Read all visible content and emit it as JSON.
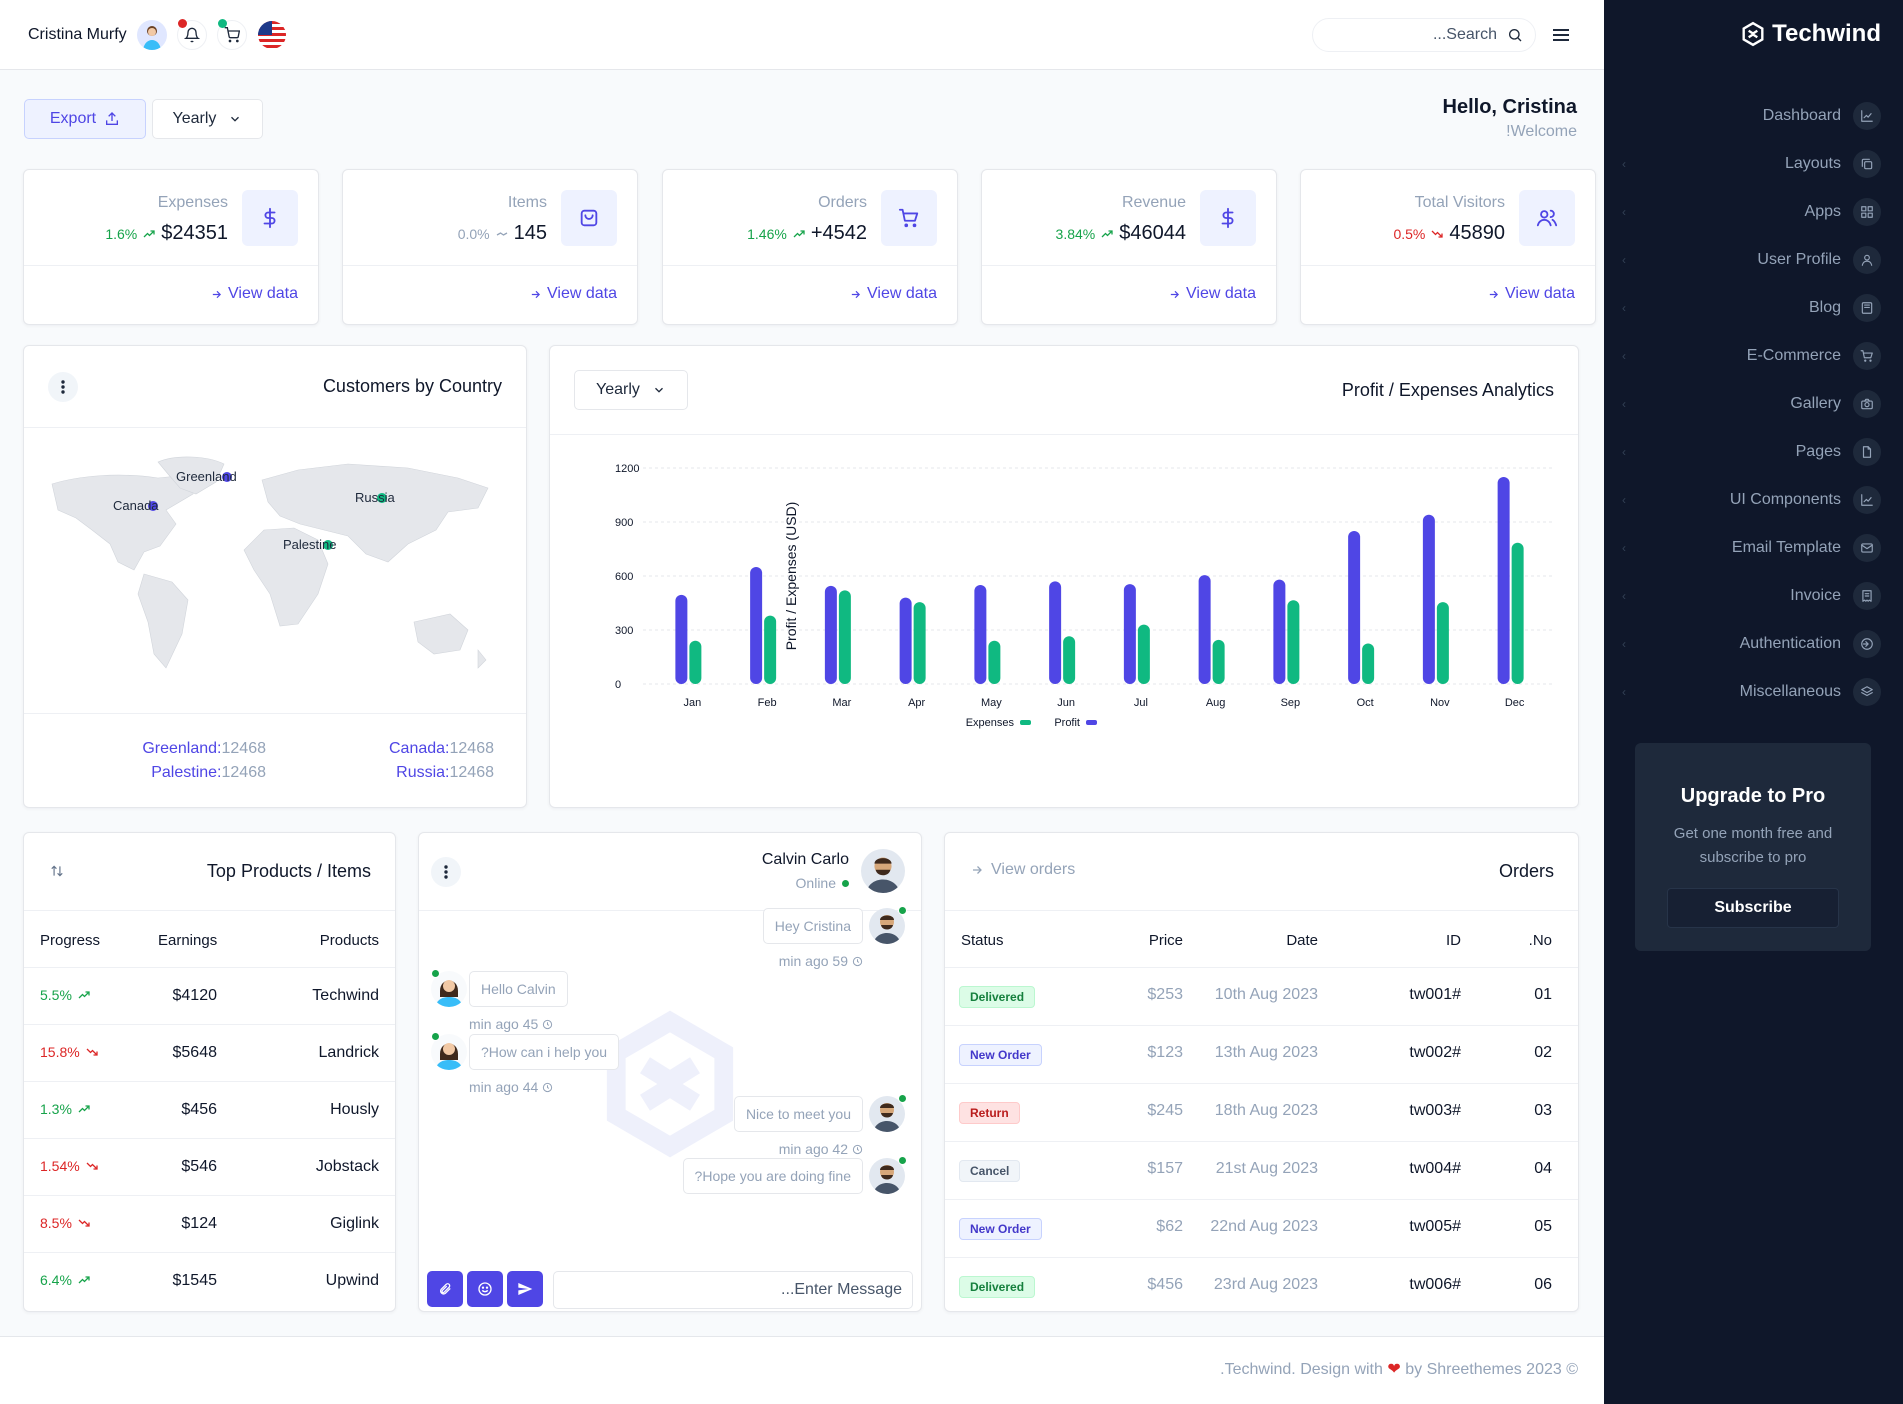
{
  "brand": {
    "name": "Techwind"
  },
  "topbar": {
    "user_name": "Cristina Murfy",
    "search_placeholder": "...Search"
  },
  "greeting": {
    "title": "Hello, Cristina",
    "subtitle": "!Welcome"
  },
  "controls": {
    "export_label": "Export",
    "period_label": "Yearly"
  },
  "stats": [
    {
      "label": "Expenses",
      "pct": "1.6%",
      "value": "$24351",
      "trend": "up",
      "link": "View data"
    },
    {
      "label": "Items",
      "pct": "0.0%",
      "value": "145",
      "trend": "flat",
      "link": "View data"
    },
    {
      "label": "Orders",
      "pct": "1.46%",
      "value": "+4542",
      "trend": "up",
      "link": "View data"
    },
    {
      "label": "Revenue",
      "pct": "3.84%",
      "value": "$46044",
      "trend": "up",
      "link": "View data"
    },
    {
      "label": "Total Visitors",
      "pct": "0.5%",
      "value": "45890",
      "trend": "down",
      "link": "View data"
    }
  ],
  "map_card": {
    "title": "Customers by Country",
    "markers": [
      "Greenland",
      "Canada",
      "Russia",
      "Palestine"
    ],
    "stats": [
      {
        "country": "Greenland:",
        "value": "12468"
      },
      {
        "country": "Canada:",
        "value": "12468"
      },
      {
        "country": "Palestine:",
        "value": "12468"
      },
      {
        "country": "Russia:",
        "value": "12468"
      }
    ]
  },
  "analytics": {
    "title": "Profit / Expenses Analytics",
    "period_label": "Yearly"
  },
  "chart_data": {
    "type": "bar",
    "title": "",
    "ylabel": "Profit / Expenses (USD)",
    "xlabel": "",
    "categories": [
      "Jan",
      "Feb",
      "Mar",
      "Apr",
      "May",
      "Jun",
      "Jul",
      "Aug",
      "Sep",
      "Oct",
      "Nov",
      "Dec"
    ],
    "series": [
      {
        "name": "Profit",
        "color": "#4f46e5",
        "values": [
          495,
          650,
          545,
          480,
          550,
          570,
          555,
          605,
          580,
          850,
          940,
          1150
        ]
      },
      {
        "name": "Expenses",
        "color": "#10b981",
        "values": [
          240,
          380,
          520,
          455,
          240,
          265,
          330,
          245,
          465,
          225,
          455,
          785
        ]
      }
    ],
    "yticks": [
      0,
      300,
      600,
      900,
      1200
    ],
    "ylim": [
      0,
      1200
    ],
    "legend": [
      "Expenses",
      "Profit"
    ],
    "legend_position": "bottom",
    "grid": true
  },
  "products": {
    "title": "Top Products / Items",
    "headers": {
      "progress": "Progress",
      "earnings": "Earnings",
      "products": "Products"
    },
    "rows": [
      {
        "progress": "5.5%",
        "trend": "up",
        "earnings": "$4120",
        "product": "Techwind"
      },
      {
        "progress": "15.8%",
        "trend": "down",
        "earnings": "$5648",
        "product": "Landrick"
      },
      {
        "progress": "1.3%",
        "trend": "up",
        "earnings": "$456",
        "product": "Hously"
      },
      {
        "progress": "1.54%",
        "trend": "down",
        "earnings": "$546",
        "product": "Jobstack"
      },
      {
        "progress": "8.5%",
        "trend": "down",
        "earnings": "$124",
        "product": "Giglink"
      },
      {
        "progress": "6.4%",
        "trend": "up",
        "earnings": "$1545",
        "product": "Upwind"
      }
    ]
  },
  "chat": {
    "contact_name": "Calvin Carlo",
    "contact_status": "Online",
    "messages": [
      {
        "side": "right",
        "text": "Hey Cristina",
        "time": "min ago 59"
      },
      {
        "side": "left",
        "text": "Hello Calvin",
        "time": "min ago 45"
      },
      {
        "side": "left",
        "text": "?How can i help you",
        "time": "min ago 44"
      },
      {
        "side": "right",
        "text": "Nice to meet you",
        "time": "min ago 42"
      },
      {
        "side": "right",
        "text": "?Hope you are doing fine",
        "time": ""
      }
    ],
    "input_placeholder": "...Enter Message"
  },
  "orders": {
    "title": "Orders",
    "link": "View orders",
    "headers": {
      "status": "Status",
      "price": "Price",
      "date": "Date",
      "id": "ID",
      "no": ".No"
    },
    "rows": [
      {
        "status": "Delivered",
        "kind": "delivered",
        "price": "$253",
        "date": "10th Aug 2023",
        "id": "tw001#",
        "no": "01"
      },
      {
        "status": "New Order",
        "kind": "new",
        "price": "$123",
        "date": "13th Aug 2023",
        "id": "tw002#",
        "no": "02"
      },
      {
        "status": "Return",
        "kind": "return",
        "price": "$245",
        "date": "18th Aug 2023",
        "id": "tw003#",
        "no": "03"
      },
      {
        "status": "Cancel",
        "kind": "cancel",
        "price": "$157",
        "date": "21st Aug 2023",
        "id": "tw004#",
        "no": "04"
      },
      {
        "status": "New Order",
        "kind": "new",
        "price": "$62",
        "date": "22nd Aug 2023",
        "id": "tw005#",
        "no": "05"
      },
      {
        "status": "Delivered",
        "kind": "delivered",
        "price": "$456",
        "date": "23rd Aug 2023",
        "id": "tw006#",
        "no": "06"
      }
    ]
  },
  "sidebar": {
    "items": [
      {
        "label": "Dashboard",
        "icon": "chart-line-icon",
        "submenu": false
      },
      {
        "label": "Layouts",
        "icon": "copy-icon",
        "submenu": true
      },
      {
        "label": "Apps",
        "icon": "grid-icon",
        "submenu": true
      },
      {
        "label": "User Profile",
        "icon": "user-icon",
        "submenu": true
      },
      {
        "label": "Blog",
        "icon": "book-icon",
        "submenu": true
      },
      {
        "label": "E-Commerce",
        "icon": "cart-icon",
        "submenu": true
      },
      {
        "label": "Gallery",
        "icon": "camera-icon",
        "submenu": true
      },
      {
        "label": "Pages",
        "icon": "file-icon",
        "submenu": true
      },
      {
        "label": "UI Components",
        "icon": "chart-line-icon",
        "submenu": true
      },
      {
        "label": "Email Template",
        "icon": "mail-icon",
        "submenu": true
      },
      {
        "label": "Invoice",
        "icon": "receipt-icon",
        "submenu": true
      },
      {
        "label": "Authentication",
        "icon": "login-icon",
        "submenu": true
      },
      {
        "label": "Miscellaneous",
        "icon": "layers-icon",
        "submenu": true
      }
    ],
    "upgrade": {
      "title": "Upgrade to Pro",
      "text": "Get one month free and subscribe to pro",
      "button": "Subscribe"
    }
  },
  "footer": {
    "text_before": ".Techwind. Design with",
    "text_after": "by Shreethemes 2023 ©"
  },
  "colors": {
    "accent": "#4f46e5",
    "success": "#10b981",
    "danger": "#dc2626",
    "sidebar_bg": "#0f172a"
  }
}
